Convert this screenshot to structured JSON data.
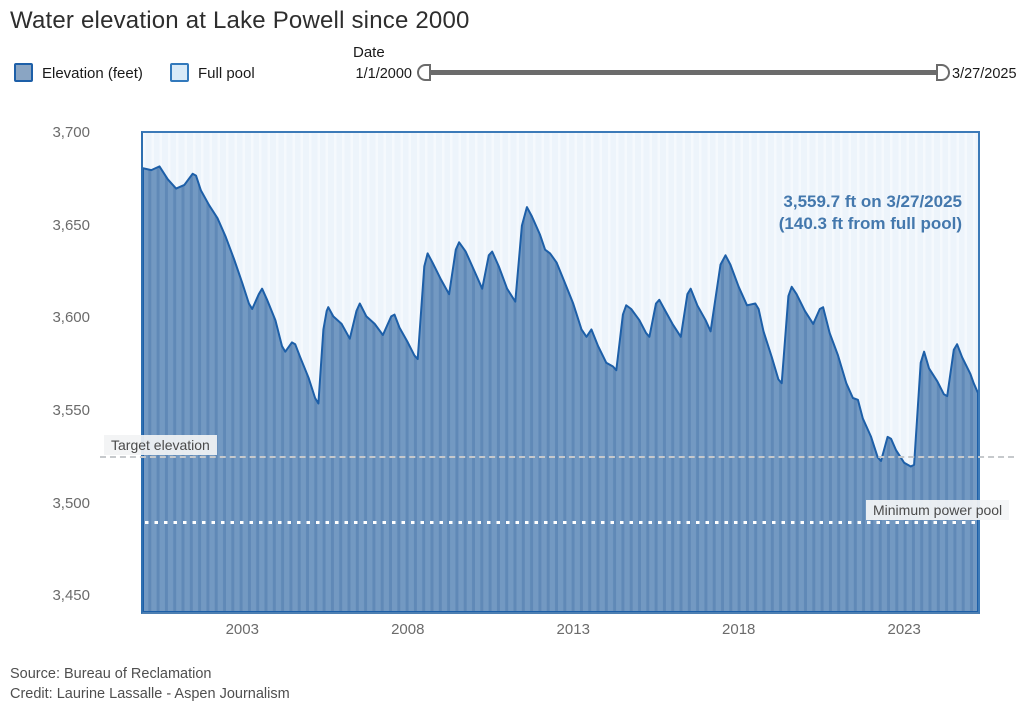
{
  "title": "Water elevation at Lake Powell since 2000",
  "legend": {
    "elevation_label": "Elevation (feet)",
    "full_pool_label": "Full pool"
  },
  "slider": {
    "label": "Date",
    "start_value": "1/1/2000",
    "end_value": "3/27/2025"
  },
  "annotation": {
    "line1": "3,559.7 ft on 3/27/2025",
    "line2": "(140.3 ft from full pool)"
  },
  "footer": {
    "source": "Source: Bureau of Reclamation",
    "credit": "Credit: Laurine Lassalle - Aspen Journalism"
  },
  "colors": {
    "area_fill_base": "#7399c2",
    "area_fill_stripe": "#6089b7",
    "line": "#1d5fa8",
    "full_pool_bg": "#edf4fb",
    "full_pool_bg_stripe": "#f5f9fd",
    "frame": "#3c7ab8",
    "annotation_text": "#4478ad",
    "axis_text": "#6b6b6b",
    "target_dash": "#c6c9cc",
    "minpool_dots": "#ffffff",
    "legend_elevation_swatch": "#8aa5c3",
    "legend_full_pool_swatch": "#d8eaf8",
    "slider_track": "#6b6b6b"
  },
  "chart_data": {
    "type": "area",
    "title": "Water elevation at Lake Powell since 2000",
    "xlabel": "Date",
    "ylabel": "Elevation (feet)",
    "x_range": [
      2000.0,
      2025.23
    ],
    "y_range": [
      3441.5,
      3700
    ],
    "x_ticks": [
      "2003",
      "2008",
      "2013",
      "2018",
      "2023"
    ],
    "x_tick_values": [
      2003,
      2008,
      2013,
      2018,
      2023
    ],
    "y_ticks": [
      "3,700",
      "3,650",
      "3,600",
      "3,550",
      "3,500",
      "3,450"
    ],
    "y_tick_values": [
      3700,
      3650,
      3600,
      3550,
      3500,
      3450
    ],
    "grid": false,
    "legend_position": "top-left",
    "full_pool_elevation": 3700,
    "reference_lines": {
      "target": {
        "label": "Target elevation",
        "value": 3525
      },
      "minimum_power_pool": {
        "label": "Minimum power pool",
        "value": 3490
      }
    },
    "latest": {
      "date": "3/27/2025",
      "elevation_ft": 3559.7,
      "ft_from_full_pool": 140.3
    },
    "series": [
      {
        "name": "Elevation (feet)",
        "points": [
          [
            2000.0,
            3681
          ],
          [
            2000.25,
            3680
          ],
          [
            2000.5,
            3682
          ],
          [
            2000.75,
            3675
          ],
          [
            2001.0,
            3670
          ],
          [
            2001.25,
            3672
          ],
          [
            2001.5,
            3678
          ],
          [
            2001.6,
            3677
          ],
          [
            2001.75,
            3669
          ],
          [
            2002.0,
            3661
          ],
          [
            2002.25,
            3654
          ],
          [
            2002.5,
            3644
          ],
          [
            2002.75,
            3632
          ],
          [
            2003.0,
            3619
          ],
          [
            2003.2,
            3608
          ],
          [
            2003.3,
            3605
          ],
          [
            2003.5,
            3613
          ],
          [
            2003.6,
            3616
          ],
          [
            2003.75,
            3610
          ],
          [
            2004.0,
            3599
          ],
          [
            2004.2,
            3585
          ],
          [
            2004.3,
            3582
          ],
          [
            2004.5,
            3587
          ],
          [
            2004.6,
            3586
          ],
          [
            2004.75,
            3579
          ],
          [
            2005.0,
            3568
          ],
          [
            2005.2,
            3557
          ],
          [
            2005.3,
            3554
          ],
          [
            2005.45,
            3594
          ],
          [
            2005.55,
            3604
          ],
          [
            2005.6,
            3606
          ],
          [
            2005.75,
            3601
          ],
          [
            2006.0,
            3597
          ],
          [
            2006.25,
            3589
          ],
          [
            2006.45,
            3604
          ],
          [
            2006.55,
            3608
          ],
          [
            2006.75,
            3601
          ],
          [
            2007.0,
            3597
          ],
          [
            2007.25,
            3591
          ],
          [
            2007.5,
            3601
          ],
          [
            2007.6,
            3602
          ],
          [
            2007.75,
            3595
          ],
          [
            2008.0,
            3587
          ],
          [
            2008.2,
            3580
          ],
          [
            2008.3,
            3578
          ],
          [
            2008.5,
            3628
          ],
          [
            2008.6,
            3635
          ],
          [
            2008.75,
            3630
          ],
          [
            2009.0,
            3621
          ],
          [
            2009.25,
            3613
          ],
          [
            2009.45,
            3637
          ],
          [
            2009.55,
            3641
          ],
          [
            2009.75,
            3636
          ],
          [
            2010.0,
            3626
          ],
          [
            2010.25,
            3616
          ],
          [
            2010.45,
            3634
          ],
          [
            2010.55,
            3636
          ],
          [
            2010.75,
            3628
          ],
          [
            2011.0,
            3616
          ],
          [
            2011.25,
            3609
          ],
          [
            2011.45,
            3650
          ],
          [
            2011.6,
            3660
          ],
          [
            2011.75,
            3655
          ],
          [
            2012.0,
            3645
          ],
          [
            2012.15,
            3637
          ],
          [
            2012.3,
            3635
          ],
          [
            2012.5,
            3630
          ],
          [
            2012.75,
            3619
          ],
          [
            2013.0,
            3608
          ],
          [
            2013.25,
            3594
          ],
          [
            2013.4,
            3590
          ],
          [
            2013.55,
            3594
          ],
          [
            2013.75,
            3585
          ],
          [
            2014.0,
            3576
          ],
          [
            2014.2,
            3574
          ],
          [
            2014.3,
            3572
          ],
          [
            2014.5,
            3602
          ],
          [
            2014.6,
            3607
          ],
          [
            2014.75,
            3605
          ],
          [
            2015.0,
            3599
          ],
          [
            2015.2,
            3592
          ],
          [
            2015.3,
            3590
          ],
          [
            2015.5,
            3608
          ],
          [
            2015.6,
            3610
          ],
          [
            2015.75,
            3605
          ],
          [
            2016.0,
            3597
          ],
          [
            2016.25,
            3590
          ],
          [
            2016.45,
            3613
          ],
          [
            2016.55,
            3616
          ],
          [
            2016.75,
            3607
          ],
          [
            2017.0,
            3599
          ],
          [
            2017.15,
            3593
          ],
          [
            2017.45,
            3629
          ],
          [
            2017.6,
            3634
          ],
          [
            2017.75,
            3629
          ],
          [
            2018.0,
            3617
          ],
          [
            2018.25,
            3607
          ],
          [
            2018.5,
            3608
          ],
          [
            2018.6,
            3605
          ],
          [
            2018.75,
            3593
          ],
          [
            2019.0,
            3579
          ],
          [
            2019.2,
            3567
          ],
          [
            2019.3,
            3565
          ],
          [
            2019.5,
            3612
          ],
          [
            2019.6,
            3617
          ],
          [
            2019.75,
            3613
          ],
          [
            2020.0,
            3604
          ],
          [
            2020.25,
            3597
          ],
          [
            2020.45,
            3605
          ],
          [
            2020.55,
            3606
          ],
          [
            2020.75,
            3592
          ],
          [
            2021.0,
            3580
          ],
          [
            2021.25,
            3565
          ],
          [
            2021.45,
            3557
          ],
          [
            2021.6,
            3556
          ],
          [
            2021.75,
            3546
          ],
          [
            2022.0,
            3536
          ],
          [
            2022.2,
            3525
          ],
          [
            2022.3,
            3523
          ],
          [
            2022.5,
            3536
          ],
          [
            2022.6,
            3535
          ],
          [
            2022.75,
            3529
          ],
          [
            2023.0,
            3522
          ],
          [
            2023.2,
            3520
          ],
          [
            2023.3,
            3521
          ],
          [
            2023.5,
            3576
          ],
          [
            2023.6,
            3582
          ],
          [
            2023.75,
            3573
          ],
          [
            2024.0,
            3566
          ],
          [
            2024.2,
            3559
          ],
          [
            2024.3,
            3558
          ],
          [
            2024.5,
            3583
          ],
          [
            2024.6,
            3586
          ],
          [
            2024.75,
            3579
          ],
          [
            2025.0,
            3570
          ],
          [
            2025.1,
            3565
          ],
          [
            2025.23,
            3559.7
          ]
        ]
      }
    ]
  }
}
